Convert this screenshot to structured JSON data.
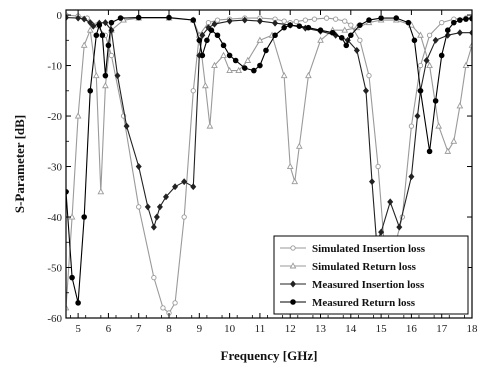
{
  "chart_data": {
    "type": "line",
    "xlabel": "Frequency [GHz]",
    "ylabel": "S-Parameter [dB]",
    "xlim": [
      4.6,
      18
    ],
    "ylim": [
      -60,
      1
    ],
    "x_ticks": [
      5,
      6,
      7,
      8,
      9,
      10,
      11,
      12,
      13,
      14,
      15,
      16,
      17,
      18
    ],
    "y_ticks": [
      0,
      -10,
      -20,
      -30,
      -40,
      -50,
      -60
    ],
    "grid": false,
    "legend_position": "bottom-right",
    "series": [
      {
        "name": "Simulated Insertion loss",
        "color": "#9a9a9a",
        "marker": "open-circle",
        "x": [
          4.6,
          5.0,
          5.3,
          5.6,
          5.9,
          6.1,
          6.5,
          7.0,
          7.5,
          7.8,
          8.0,
          8.2,
          8.5,
          8.8,
          9.0,
          9.3,
          9.6,
          10.0,
          10.5,
          11.0,
          11.5,
          11.8,
          12.0,
          12.2,
          12.5,
          12.8,
          13.2,
          13.5,
          13.8,
          14.0,
          14.3,
          14.6,
          14.9,
          15.1,
          15.4,
          15.7,
          16.0,
          16.3,
          16.6,
          17.0,
          17.4,
          17.8,
          18.0
        ],
        "y": [
          0,
          -0.2,
          -0.6,
          -2,
          -4,
          -8,
          -20,
          -38,
          -52,
          -58,
          -59,
          -57,
          -40,
          -15,
          -4,
          -1.5,
          -1,
          -0.8,
          -0.6,
          -0.6,
          -0.8,
          -1.2,
          -1.5,
          -1.3,
          -1,
          -0.8,
          -0.6,
          -0.8,
          -1.2,
          -2,
          -5,
          -12,
          -30,
          -45,
          -47,
          -40,
          -22,
          -10,
          -4,
          -1.5,
          -0.8,
          -0.6,
          -0.6
        ]
      },
      {
        "name": "Simulated Return loss",
        "color": "#9a9a9a",
        "marker": "open-triangle",
        "x": [
          4.6,
          4.8,
          5.0,
          5.2,
          5.4,
          5.6,
          5.75,
          5.9,
          6.1,
          6.5,
          7.0,
          8.0,
          8.8,
          9.0,
          9.2,
          9.35,
          9.5,
          9.8,
          10.0,
          10.3,
          10.6,
          11.0,
          11.4,
          11.8,
          12.0,
          12.15,
          12.3,
          12.6,
          13.0,
          13.4,
          13.8,
          14.2,
          14.6,
          15.0,
          15.5,
          16.0,
          16.3,
          16.6,
          16.9,
          17.2,
          17.4,
          17.6,
          17.8,
          18.0
        ],
        "y": [
          -58,
          -40,
          -20,
          -6,
          -3,
          -12,
          -35,
          -14,
          -3,
          -1,
          -0.6,
          -0.6,
          -1,
          -4,
          -14,
          -22,
          -10,
          -8,
          -11,
          -11,
          -9,
          -5,
          -4,
          -12,
          -30,
          -33,
          -26,
          -12,
          -5,
          -3,
          -3,
          -2.5,
          -1.5,
          -1,
          -1,
          -2,
          -4,
          -10,
          -22,
          -27,
          -25,
          -18,
          -10,
          -6
        ]
      },
      {
        "name": "Measured Insertion loss",
        "color": "#222222",
        "marker": "filled-diamond",
        "x": [
          4.6,
          5.0,
          5.2,
          5.4,
          5.5,
          5.7,
          5.9,
          6.1,
          6.3,
          6.6,
          7.0,
          7.3,
          7.5,
          7.6,
          7.7,
          7.9,
          8.2,
          8.5,
          8.8,
          9.0,
          9.1,
          9.3,
          9.5,
          10.0,
          10.5,
          11.0,
          11.5,
          12.0,
          12.5,
          13.0,
          13.5,
          13.9,
          14.2,
          14.5,
          14.7,
          14.85,
          15.0,
          15.3,
          15.6,
          16.0,
          16.2,
          16.3,
          16.5,
          16.8,
          17.2,
          17.6,
          18.0
        ],
        "y": [
          -0.5,
          -0.6,
          -0.8,
          -1.5,
          -2.2,
          -1.6,
          -1.5,
          -3,
          -12,
          -22,
          -30,
          -38,
          -42,
          -40,
          -38,
          -36,
          -34,
          -33,
          -34,
          -8,
          -4,
          -2.5,
          -1.8,
          -1.2,
          -1,
          -1.2,
          -1.6,
          -2,
          -2.6,
          -3.2,
          -4,
          -5,
          -7,
          -15,
          -33,
          -45,
          -43,
          -37,
          -42,
          -32,
          -20,
          -15,
          -9,
          -5,
          -4,
          -3.5,
          -3.5
        ]
      },
      {
        "name": "Measured Return loss",
        "color": "#000000",
        "marker": "filled-circle",
        "x": [
          4.6,
          4.8,
          5.0,
          5.2,
          5.4,
          5.6,
          5.7,
          5.8,
          5.9,
          6.0,
          6.1,
          6.4,
          7.0,
          8.0,
          8.8,
          9.0,
          9.1,
          9.25,
          9.4,
          9.6,
          9.8,
          10.0,
          10.2,
          10.5,
          10.8,
          11.0,
          11.2,
          11.5,
          11.8,
          12.0,
          12.3,
          12.6,
          13.0,
          13.4,
          13.7,
          13.85,
          14.0,
          14.3,
          14.6,
          15.0,
          15.5,
          15.9,
          16.1,
          16.3,
          16.6,
          16.8,
          17.0,
          17.2,
          17.4,
          17.6,
          17.8,
          18.0
        ],
        "y": [
          -35,
          -52,
          -57,
          -40,
          -15,
          -4,
          -2,
          -4,
          -12,
          -6,
          -1.5,
          -0.6,
          -0.5,
          -0.5,
          -1,
          -5,
          -8,
          -5,
          -3,
          -4,
          -6,
          -8,
          -9,
          -10.5,
          -11,
          -10,
          -7,
          -4,
          -2.5,
          -2,
          -2.2,
          -2.5,
          -3,
          -3.5,
          -4.5,
          -6,
          -4,
          -2,
          -1,
          -0.6,
          -0.6,
          -1.5,
          -5,
          -15,
          -27,
          -17,
          -8,
          -3,
          -1.5,
          -1,
          -0.8,
          -0.7
        ]
      }
    ]
  }
}
